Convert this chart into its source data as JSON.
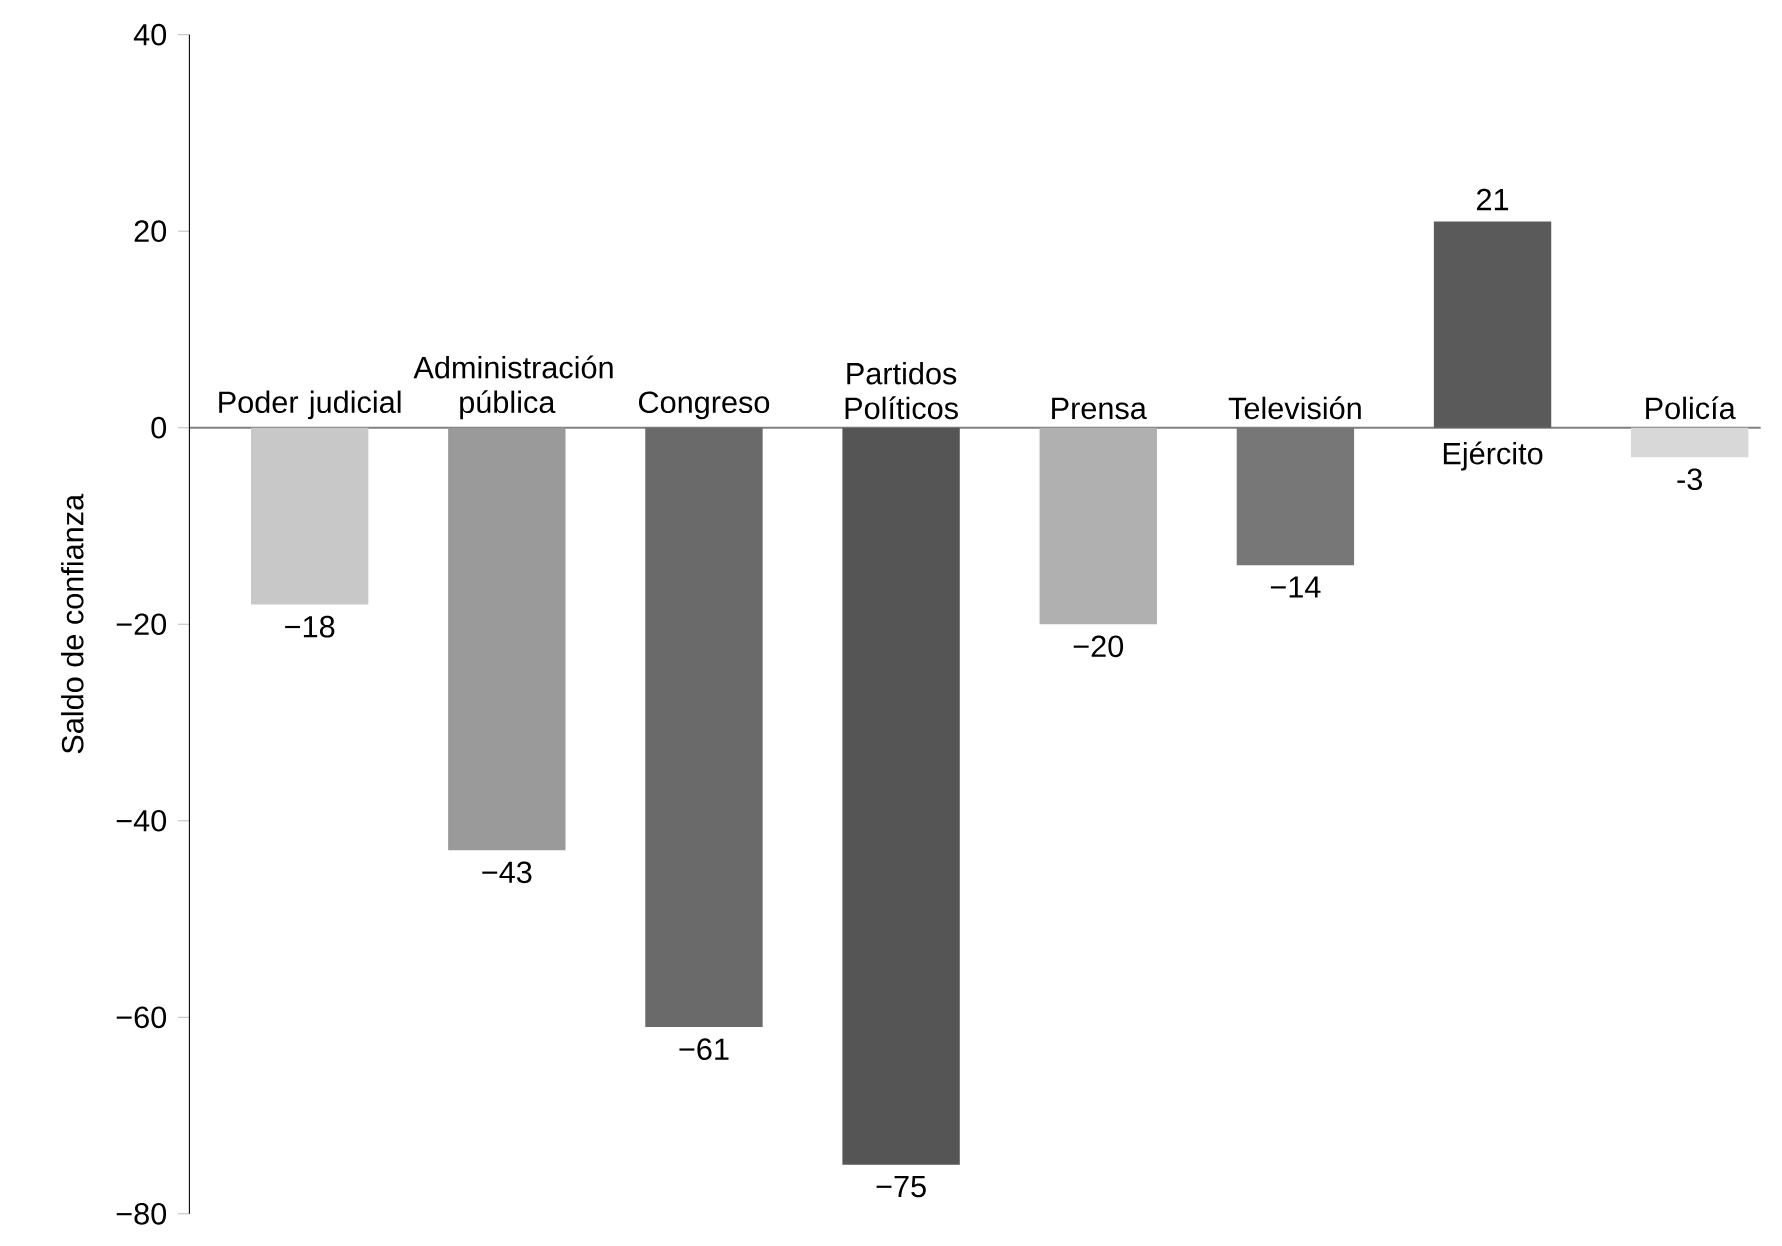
{
  "chart_data": {
    "type": "bar",
    "ylabel": "Saldo de confianza",
    "categories": [
      "Poder judicial",
      "Administración pública",
      "Congreso",
      "Partidos Políticos",
      "Prensa",
      "Televisión",
      "Ejército",
      "Policía"
    ],
    "values": [
      -18,
      -43,
      -61,
      -75,
      -20,
      -14,
      21,
      -3
    ],
    "value_labels": [
      "−18",
      "−43",
      "−61",
      "−75",
      "−20",
      "−14",
      "21",
      "-3"
    ],
    "colors": [
      "#c8c8c8",
      "#9a9a9a",
      "#6a6a6a",
      "#555555",
      "#b0b0b0",
      "#777777",
      "#5a5a5a",
      "#d8d8d8"
    ],
    "ylim": [
      -80,
      40
    ],
    "yticks": [
      {
        "value": -80,
        "label": "−80"
      },
      {
        "value": -60,
        "label": "−60"
      },
      {
        "value": -40,
        "label": "−40"
      },
      {
        "value": -20,
        "label": "−20"
      },
      0,
      20,
      40
    ]
  }
}
